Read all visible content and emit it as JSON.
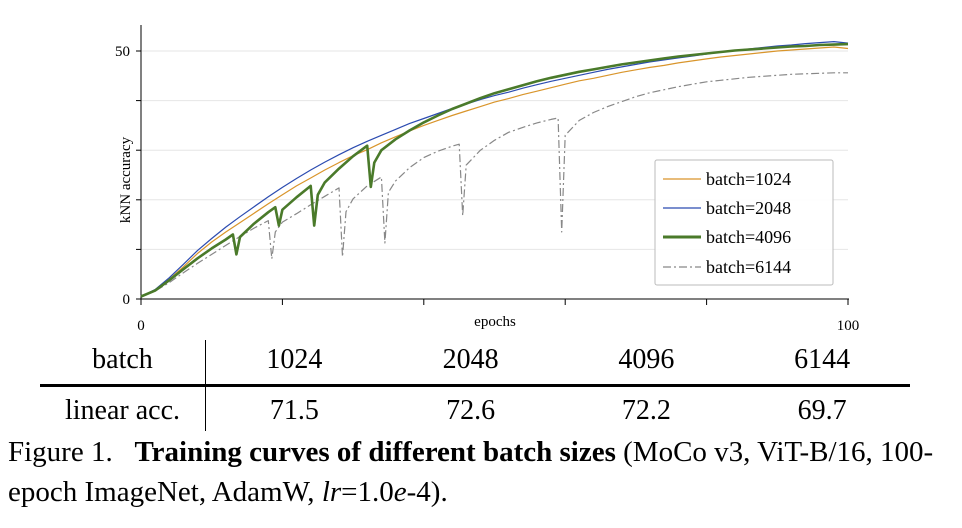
{
  "chart_data": {
    "type": "line",
    "xlabel": "epochs",
    "ylabel": "kNN accuracy",
    "xlim": [
      0,
      100
    ],
    "ylim": [
      0,
      52
    ],
    "x_ticks": [
      0,
      100
    ],
    "y_ticks": [
      0,
      50
    ],
    "grid": true,
    "legend_position": "lower-right",
    "series": [
      {
        "name": "batch=1024",
        "color": "#d9952b",
        "style": "solid",
        "x": [
          0,
          2,
          4,
          6,
          8,
          10,
          12,
          14,
          16,
          18,
          20,
          22,
          24,
          26,
          28,
          30,
          32,
          34,
          36,
          38,
          40,
          42,
          44,
          46,
          48,
          50,
          52,
          54,
          56,
          58,
          60,
          62,
          64,
          66,
          68,
          70,
          72,
          74,
          76,
          78,
          80,
          82,
          84,
          86,
          88,
          90,
          92,
          94,
          96,
          98,
          100
        ],
        "values": [
          0.5,
          1.8,
          4,
          6.5,
          9.2,
          11.5,
          13.5,
          15.4,
          17.3,
          19.2,
          21,
          22.8,
          24.4,
          26,
          27.5,
          28.9,
          30.1,
          31.5,
          32.7,
          33.9,
          35,
          36,
          37,
          37.9,
          38.8,
          39.7,
          40.4,
          41.2,
          41.9,
          42.6,
          43.3,
          44,
          44.5,
          45.1,
          45.7,
          46.2,
          46.7,
          47.1,
          47.6,
          48,
          48.4,
          48.8,
          49.1,
          49.4,
          49.7,
          50,
          50.2,
          50.4,
          50.6,
          50.8,
          50.5
        ]
      },
      {
        "name": "batch=2048",
        "color": "#2b4bb0",
        "style": "solid",
        "x": [
          0,
          2,
          4,
          6,
          8,
          10,
          12,
          14,
          16,
          18,
          20,
          22,
          24,
          26,
          28,
          30,
          32,
          34,
          36,
          38,
          40,
          42,
          44,
          46,
          48,
          50,
          52,
          54,
          56,
          58,
          60,
          62,
          64,
          66,
          68,
          70,
          72,
          74,
          76,
          78,
          80,
          82,
          84,
          86,
          88,
          90,
          92,
          94,
          96,
          98,
          100
        ],
        "values": [
          0.5,
          1.9,
          4.3,
          7,
          9.8,
          12.2,
          14.5,
          16.6,
          18.6,
          20.6,
          22.5,
          24.3,
          26,
          27.6,
          29.1,
          30.5,
          31.8,
          33,
          34.2,
          35.4,
          36.4,
          37.4,
          38.4,
          39.3,
          40.2,
          41,
          41.7,
          42.5,
          43.2,
          43.9,
          44.5,
          45.1,
          45.7,
          46.3,
          46.8,
          47.3,
          47.8,
          48.2,
          48.6,
          49,
          49.4,
          49.8,
          50.1,
          50.4,
          50.7,
          51,
          51.2,
          51.5,
          51.7,
          51.9,
          51.6
        ]
      },
      {
        "name": "batch=4096",
        "color": "#4a7a2a",
        "style": "solid-thick",
        "x": [
          0,
          2,
          4,
          6,
          8,
          10,
          12,
          13,
          13.5,
          14,
          16,
          18,
          19,
          19.5,
          20,
          22,
          24,
          24.5,
          25,
          26,
          28,
          30,
          32,
          32.5,
          33,
          34,
          36,
          38,
          40,
          42,
          44,
          46,
          48,
          50,
          52,
          54,
          56,
          58,
          60,
          62,
          64,
          66,
          68,
          70,
          72,
          74,
          76,
          78,
          80,
          82,
          84,
          86,
          88,
          90,
          92,
          94,
          96,
          98,
          100
        ],
        "values": [
          0.5,
          1.7,
          3.8,
          6,
          8.2,
          10.2,
          12,
          13,
          9,
          12.5,
          15.2,
          17.5,
          18.5,
          14.8,
          18,
          20.5,
          22.8,
          14.8,
          21,
          23.5,
          26.3,
          28.8,
          30.9,
          22.6,
          27.5,
          30,
          32.2,
          34,
          35.6,
          37,
          38.3,
          39.4,
          40.5,
          41.5,
          42.3,
          43.1,
          43.9,
          44.6,
          45.2,
          45.8,
          46.3,
          46.8,
          47.3,
          47.7,
          48.1,
          48.5,
          48.9,
          49.2,
          49.5,
          49.8,
          50.1,
          50.3,
          50.5,
          50.7,
          50.9,
          51,
          51.2,
          51.3,
          51.4
        ]
      },
      {
        "name": "batch=6144",
        "color": "#888888",
        "style": "dash-dot",
        "x": [
          0,
          2,
          4,
          6,
          8,
          10,
          12,
          14,
          16,
          18,
          18.5,
          19,
          20,
          22,
          24,
          26,
          28,
          28.5,
          29,
          30,
          32,
          34,
          34.5,
          35,
          36,
          38,
          40,
          42,
          44,
          45,
          45.5,
          46,
          48,
          50,
          52,
          54,
          56,
          58,
          59,
          59.5,
          60,
          62,
          64,
          66,
          68,
          70,
          72,
          74,
          76,
          78,
          80,
          82,
          84,
          86,
          88,
          90,
          92,
          94,
          96,
          98,
          100
        ],
        "values": [
          0.5,
          1.6,
          3.3,
          5.3,
          7.2,
          9,
          10.8,
          12.6,
          14.3,
          15.8,
          8.1,
          13.5,
          15.5,
          17.2,
          19,
          20.7,
          22.4,
          8.5,
          17.6,
          20.2,
          22.8,
          24.6,
          11.3,
          21.5,
          23.8,
          26.5,
          28.5,
          29.8,
          30.8,
          31.2,
          16.8,
          27,
          30,
          32,
          33.6,
          34.6,
          35.5,
          36.2,
          36.5,
          13.5,
          33,
          36,
          37.6,
          38.8,
          39.8,
          40.8,
          41.6,
          42.2,
          42.8,
          43.3,
          43.8,
          44.1,
          44.4,
          44.7,
          44.9,
          45.1,
          45.3,
          45.4,
          45.5,
          45.6,
          45.6
        ]
      }
    ]
  },
  "table": {
    "row_labels": [
      "batch",
      "linear acc."
    ],
    "batch_values": [
      "1024",
      "2048",
      "4096",
      "6144"
    ],
    "acc_values": [
      "71.5",
      "72.6",
      "72.2",
      "69.7"
    ]
  },
  "caption": {
    "prefix": "Figure 1.",
    "title": "Training curves of different batch sizes",
    "body_part1": " (MoCo v3, ViT-B/16, 100-epoch ImageNet, AdamW, ",
    "lr_symbol": "lr",
    "equals": "=1.0",
    "exp_symbol": "e",
    "body_part2": "-4)."
  }
}
